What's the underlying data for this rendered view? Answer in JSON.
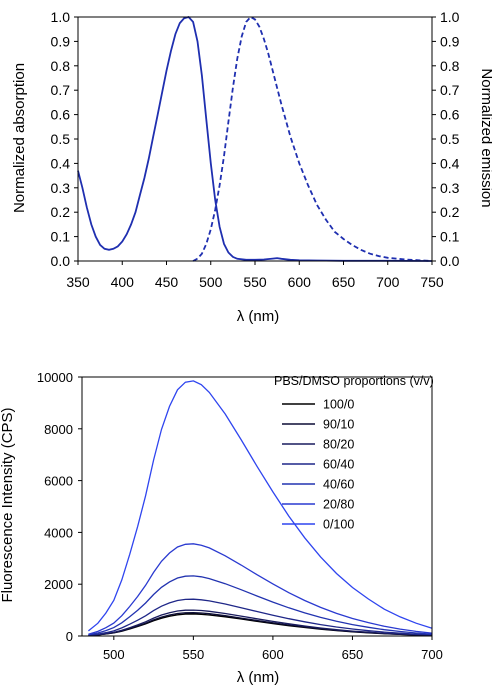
{
  "chart_data": [
    {
      "type": "line",
      "title": "",
      "xlabel": "λ (nm)",
      "ylabel": "Normalized absorption",
      "y2label": "Normalized emission",
      "xlim": [
        350,
        750
      ],
      "ylim": [
        0,
        1.0
      ],
      "y2lim": [
        0,
        1.0
      ],
      "x_ticks": [
        "350",
        "400",
        "450",
        "500",
        "550",
        "600",
        "650",
        "700",
        "750"
      ],
      "y_ticks": [
        "0.0",
        "0.1",
        "0.2",
        "0.3",
        "0.4",
        "0.5",
        "0.6",
        "0.7",
        "0.8",
        "0.9",
        "1.0"
      ],
      "y2_ticks": [
        "0.0",
        "0.1",
        "0.2",
        "0.3",
        "0.4",
        "0.5",
        "0.6",
        "0.7",
        "0.8",
        "0.9",
        "1.0"
      ],
      "grid": false,
      "color": "#1f2fb0",
      "series": [
        {
          "style": "solid",
          "axis": "left",
          "points": [
            [
              350,
              0.37
            ],
            [
              355,
              0.3
            ],
            [
              360,
              0.22
            ],
            [
              365,
              0.15
            ],
            [
              370,
              0.1
            ],
            [
              375,
              0.066
            ],
            [
              380,
              0.05
            ],
            [
              385,
              0.046
            ],
            [
              390,
              0.05
            ],
            [
              395,
              0.06
            ],
            [
              400,
              0.08
            ],
            [
              405,
              0.11
            ],
            [
              410,
              0.15
            ],
            [
              415,
              0.2
            ],
            [
              420,
              0.27
            ],
            [
              425,
              0.34
            ],
            [
              430,
              0.42
            ],
            [
              435,
              0.51
            ],
            [
              440,
              0.6
            ],
            [
              445,
              0.69
            ],
            [
              450,
              0.78
            ],
            [
              455,
              0.86
            ],
            [
              460,
              0.93
            ],
            [
              465,
              0.975
            ],
            [
              470,
              0.995
            ],
            [
              475,
              1.0
            ],
            [
              480,
              0.98
            ],
            [
              485,
              0.9
            ],
            [
              490,
              0.76
            ],
            [
              495,
              0.58
            ],
            [
              500,
              0.4
            ],
            [
              505,
              0.25
            ],
            [
              510,
              0.14
            ],
            [
              515,
              0.07
            ],
            [
              520,
              0.035
            ],
            [
              525,
              0.017
            ],
            [
              530,
              0.009
            ],
            [
              540,
              0.005
            ],
            [
              550,
              0.005
            ],
            [
              560,
              0.006
            ],
            [
              570,
              0.01
            ],
            [
              575,
              0.012
            ],
            [
              580,
              0.009
            ],
            [
              590,
              0.005
            ],
            [
              600,
              0.003
            ],
            [
              620,
              0.002
            ],
            [
              650,
              0.001
            ],
            [
              700,
              0.001
            ],
            [
              750,
              0.0
            ]
          ]
        },
        {
          "style": "dashed",
          "axis": "right",
          "points": [
            [
              480,
              0.0
            ],
            [
              485,
              0.01
            ],
            [
              490,
              0.03
            ],
            [
              495,
              0.07
            ],
            [
              500,
              0.13
            ],
            [
              505,
              0.21
            ],
            [
              510,
              0.31
            ],
            [
              515,
              0.43
            ],
            [
              520,
              0.57
            ],
            [
              525,
              0.71
            ],
            [
              530,
              0.83
            ],
            [
              535,
              0.92
            ],
            [
              540,
              0.98
            ],
            [
              545,
              1.0
            ],
            [
              550,
              0.99
            ],
            [
              555,
              0.96
            ],
            [
              560,
              0.91
            ],
            [
              565,
              0.85
            ],
            [
              570,
              0.78
            ],
            [
              575,
              0.71
            ],
            [
              580,
              0.64
            ],
            [
              590,
              0.51
            ],
            [
              600,
              0.4
            ],
            [
              610,
              0.31
            ],
            [
              620,
              0.23
            ],
            [
              630,
              0.17
            ],
            [
              640,
              0.12
            ],
            [
              650,
              0.09
            ],
            [
              660,
              0.065
            ],
            [
              670,
              0.045
            ],
            [
              680,
              0.03
            ],
            [
              690,
              0.02
            ],
            [
              700,
              0.013
            ],
            [
              720,
              0.006
            ],
            [
              740,
              0.002
            ],
            [
              750,
              0.0
            ]
          ]
        }
      ]
    },
    {
      "type": "line",
      "title": "",
      "xlabel": "λ (nm)",
      "ylabel": "Fluorescence Intensity (CPS)",
      "xlim": [
        480,
        700
      ],
      "ylim": [
        0,
        10000
      ],
      "x_ticks": [
        "500",
        "550",
        "600",
        "650",
        "700"
      ],
      "y_ticks": [
        "0",
        "2000",
        "4000",
        "6000",
        "8000",
        "10000"
      ],
      "grid": false,
      "legend_title": "PBS/DMSO proportions (v/v)",
      "legend_position": "top-right",
      "series": [
        {
          "name": "100/0",
          "color": "#000000",
          "peak": 850
        },
        {
          "name": "90/10",
          "color": "#0c0c35",
          "peak": 900
        },
        {
          "name": "80/20",
          "color": "#191b5e",
          "peak": 1000
        },
        {
          "name": "60/40",
          "color": "#1f2788",
          "peak": 1420
        },
        {
          "name": "40/60",
          "color": "#2233b0",
          "peak": 2320
        },
        {
          "name": "20/80",
          "color": "#2a3ad0",
          "peak": 3560
        },
        {
          "name": "0/100",
          "color": "#2f45ef",
          "peak": 9850
        }
      ],
      "shape_x": [
        484,
        490,
        495,
        500,
        505,
        510,
        515,
        520,
        525,
        530,
        535,
        540,
        545,
        550,
        555,
        560,
        570,
        580,
        590,
        600,
        610,
        620,
        630,
        640,
        650,
        660,
        670,
        680,
        690,
        700
      ],
      "shape_y": [
        0.02,
        0.05,
        0.09,
        0.14,
        0.22,
        0.32,
        0.43,
        0.55,
        0.69,
        0.81,
        0.9,
        0.965,
        0.995,
        1.0,
        0.985,
        0.955,
        0.87,
        0.77,
        0.665,
        0.565,
        0.47,
        0.385,
        0.31,
        0.245,
        0.19,
        0.145,
        0.105,
        0.075,
        0.05,
        0.03
      ]
    }
  ]
}
